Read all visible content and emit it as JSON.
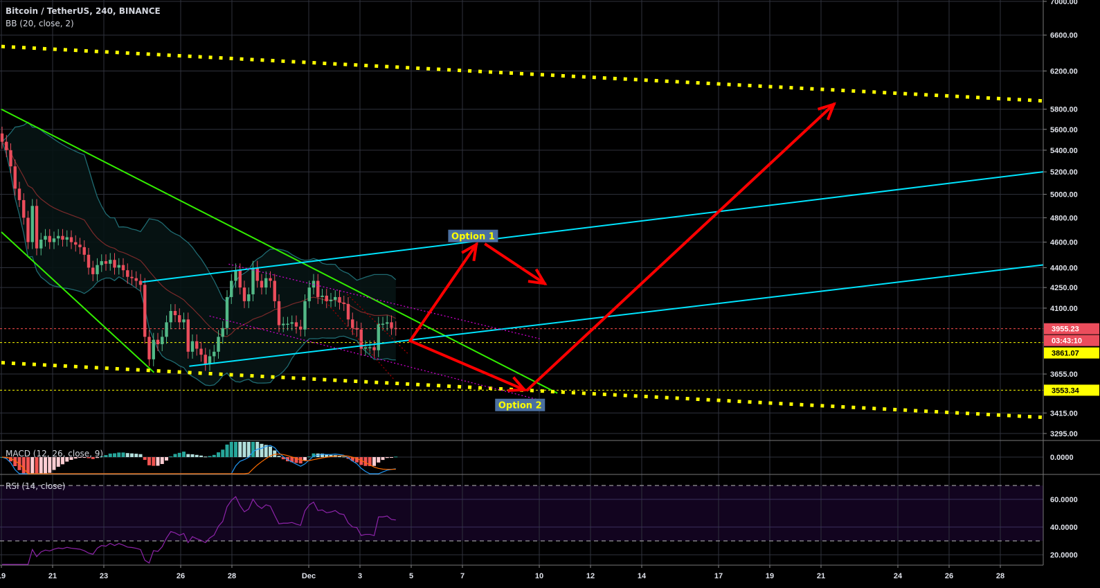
{
  "header": {
    "title": "Bitcoin / TetherUS, 240, BINANCE",
    "indicator": "BB (20, close, 2)"
  },
  "macd_pane": {
    "label": "MACD (12, 26, close, 9)",
    "ticks": [
      "0.0000"
    ]
  },
  "rsi_pane": {
    "label": "RSI (14, close)",
    "ticks": [
      "60.0000",
      "40.0000",
      "20.0000"
    ],
    "band": [
      30,
      70
    ]
  },
  "colors": {
    "up": "#53b987",
    "down": "#eb4d5c",
    "bb": "#1f6b72",
    "bb_mid": "#7a2a2a",
    "green_line": "#33ee00",
    "cyan_line": "#00e5ff",
    "yellow_dots": "#ffff00",
    "arrow": "#ff0000",
    "magenta": "#cc00cc",
    "macd": "#2196f3",
    "signal": "#ff6d00",
    "rsi": "#8e24aa"
  },
  "chart_data": {
    "type": "candlestick",
    "symbol": "Bitcoin / TetherUS",
    "interval": "240",
    "exchange": "BINANCE",
    "y_scale": "log",
    "ylim": [
      3295,
      7000
    ],
    "first_candle": "Nov 19 00:00",
    "closes": [
      5480,
      5400,
      5250,
      5050,
      4950,
      4800,
      4600,
      4900,
      4550,
      4620,
      4650,
      4600,
      4630,
      4650,
      4620,
      4640,
      4600,
      4580,
      4560,
      4500,
      4400,
      4350,
      4420,
      4450,
      4430,
      4460,
      4400,
      4420,
      4380,
      4330,
      4320,
      4300,
      4270,
      3900,
      3750,
      3880,
      3850,
      3900,
      4000,
      4080,
      4050,
      4000,
      4020,
      3800,
      3870,
      3820,
      3780,
      3720,
      3770,
      3800,
      3900,
      3960,
      4180,
      4300,
      4380,
      4250,
      4150,
      4200,
      4400,
      4300,
      4250,
      4320,
      4300,
      4150,
      3980,
      3990,
      3990,
      4000,
      3970,
      3950,
      4150,
      4250,
      4300,
      4180,
      4190,
      4150,
      4160,
      4180,
      4140,
      4130,
      4020,
      3960,
      3950,
      3820,
      3830,
      3830,
      3810,
      3990,
      3990,
      4000,
      3960,
      3955
    ],
    "first_open": 5560,
    "price_ticks": [
      7000,
      6600,
      6200,
      5800,
      5600,
      5400,
      5200,
      5000,
      4800,
      4600,
      4400,
      4250,
      4100,
      3655,
      3415,
      3295
    ],
    "price_tick_labels": [
      "7000.00",
      "6600.00",
      "6200.00",
      "5800.00",
      "5600.00",
      "5400.00",
      "5200.00",
      "5000.00",
      "4800.00",
      "4600.00",
      "4400.00",
      "4250.00",
      "4100.00",
      "3655.00",
      "3415.00",
      "3295.00"
    ],
    "time_ticks": [
      {
        "label": "19",
        "t": "Nov 19 00:00"
      },
      {
        "label": "21",
        "t": "Nov 21 00:00"
      },
      {
        "label": "23",
        "t": "Nov 23 00:00"
      },
      {
        "label": "26",
        "t": "Nov 26 00:00"
      },
      {
        "label": "28",
        "t": "Nov 28 00:00"
      },
      {
        "label": "Dec",
        "t": "Dec 1 00:00"
      },
      {
        "label": "3",
        "t": "Dec 3 00:00"
      },
      {
        "label": "5",
        "t": "Dec 5 00:00"
      },
      {
        "label": "7",
        "t": "Dec 7 00:00"
      },
      {
        "label": "10",
        "t": "Dec 10 00:00"
      },
      {
        "label": "12",
        "t": "Dec 12 00:00"
      },
      {
        "label": "14",
        "t": "Dec 14 00:00"
      },
      {
        "label": "17",
        "t": "Dec 17 00:00"
      },
      {
        "label": "19",
        "t": "Dec 19 00:00"
      },
      {
        "label": "21",
        "t": "Dec 21 00:00"
      },
      {
        "label": "24",
        "t": "Dec 24 00:00"
      },
      {
        "label": "26",
        "t": "Dec 26 00:00"
      },
      {
        "label": "28",
        "t": "Dec 28 00:00"
      }
    ],
    "price_labels": [
      {
        "text": "3955.23",
        "value": 3955.23,
        "style": "last"
      },
      {
        "text": "03:43:10",
        "value": 3955.23,
        "style": "countdown"
      },
      {
        "text": "3861.07",
        "value": 3861.07,
        "style": "yellow"
      },
      {
        "text": "3553.34",
        "value": 3553.34,
        "style": "yellow"
      }
    ],
    "horizontal_lines": [
      {
        "value": 3955.23,
        "color": "#ff4d4d"
      },
      {
        "value": 3861.07,
        "color": "#ffff00"
      },
      {
        "value": 3553.34,
        "color": "#ffff00"
      }
    ],
    "trend_lines": [
      {
        "name": "green-downtrend-upper",
        "color": "green_line",
        "style": "solid",
        "from": {
          "t": "Nov 19 00:00",
          "p": 5800
        },
        "to": {
          "t": "Dec 10 17:00",
          "p": 3535
        }
      },
      {
        "name": "green-downtrend-lower",
        "color": "green_line",
        "style": "solid",
        "from": {
          "t": "Nov 19 00:00",
          "p": 4682
        },
        "to": {
          "t": "Nov 24 23:00",
          "p": 3665
        }
      },
      {
        "name": "cyan-channel-upper",
        "color": "cyan_line",
        "style": "solid",
        "from": {
          "t": "Nov 24 12:00",
          "p": 4291
        },
        "to": {
          "t": "Dec 29 16:00",
          "p": 5200
        }
      },
      {
        "name": "cyan-channel-lower",
        "color": "cyan_line",
        "style": "solid",
        "from": {
          "t": "Nov 26 08:00",
          "p": 3705
        },
        "to": {
          "t": "Dec 29 16:00",
          "p": 4421
        }
      },
      {
        "name": "yellow-dotted-upper",
        "color": "yellow_dots",
        "style": "dots",
        "from": {
          "t": "Nov 19 00:00",
          "p": 6471
        },
        "to": {
          "t": "Dec 29 16:00",
          "p": 5885
        }
      },
      {
        "name": "yellow-dotted-lower",
        "color": "yellow_dots",
        "style": "dots",
        "from": {
          "t": "Nov 19 00:00",
          "p": 3728
        },
        "to": {
          "t": "Dec 29 16:00",
          "p": 3389
        }
      },
      {
        "name": "magenta-channel-upper",
        "color": "magenta",
        "style": "dotted",
        "from": {
          "t": "Nov 27 21:00",
          "p": 4427
        },
        "to": {
          "t": "Dec 10 01:00",
          "p": 3886
        }
      },
      {
        "name": "magenta-channel-lower",
        "color": "magenta",
        "style": "dotted",
        "from": {
          "t": "Nov 27 03:00",
          "p": 4044
        },
        "to": {
          "t": "Dec 10 01:00",
          "p": 3492
        }
      },
      {
        "name": "darkred-dotted-1",
        "color": "#a00000",
        "style": "dotted",
        "from": {
          "t": "Dec 1 12:00",
          "p": 4180
        },
        "to": {
          "t": "Dec 4 08:00",
          "p": 3620
        }
      },
      {
        "name": "darkred-dotted-2",
        "color": "#a00000",
        "style": "dotted",
        "from": {
          "t": "Dec 2 12:00",
          "p": 4200
        },
        "to": {
          "t": "Dec 4 22:00",
          "p": 3780
        }
      }
    ],
    "arrows": [
      {
        "name": "option-1-up",
        "from": {
          "t": "Dec 4 23:00",
          "p": 3873
        },
        "to": {
          "t": "Dec 7 13:00",
          "p": 4581
        }
      },
      {
        "name": "option-1-down",
        "from": {
          "t": "Dec 7 22:00",
          "p": 4581
        },
        "to": {
          "t": "Dec 10 05:00",
          "p": 4280
        }
      },
      {
        "name": "option-2-down",
        "from": {
          "t": "Dec 4 23:00",
          "p": 3873
        },
        "to": {
          "t": "Dec 9 10:00",
          "p": 3556
        }
      },
      {
        "name": "option-2-up",
        "from": {
          "t": "Dec 9 13:00",
          "p": 3556
        },
        "to": {
          "t": "Dec 21 12:00",
          "p": 5850
        }
      }
    ],
    "annotations": [
      {
        "text": "Option 1",
        "t": "Dec 7 10:00",
        "p": 4650
      },
      {
        "text": "Option 2",
        "t": "Dec 9 06:00",
        "p": 3463
      }
    ]
  }
}
